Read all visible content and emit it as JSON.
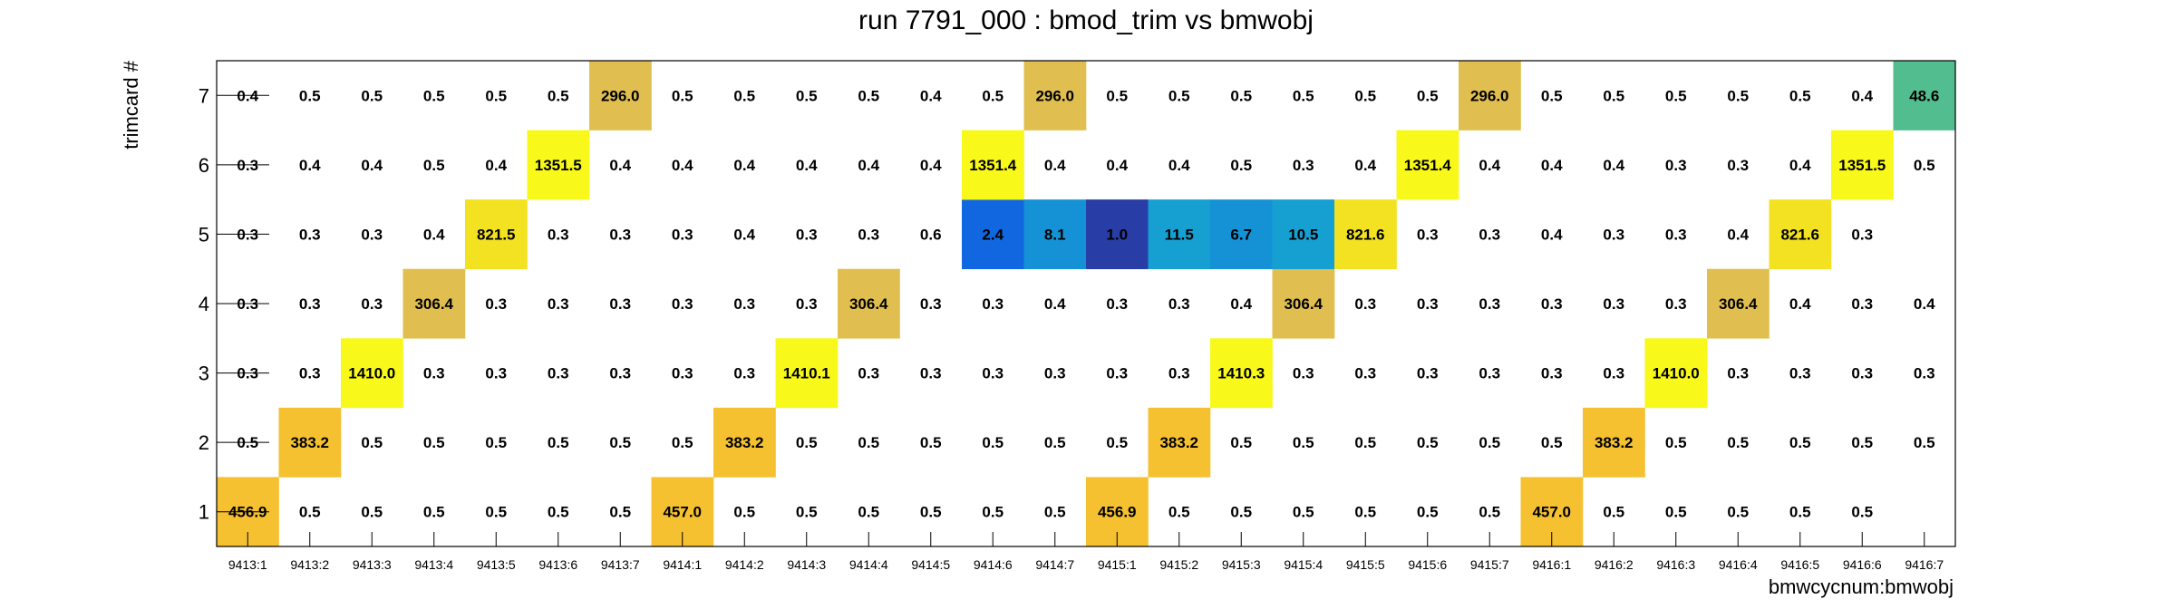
{
  "chart_data": {
    "type": "heatmap",
    "title": "run 7791_000 : bmod_trim vs bmwobj",
    "xlabel": "bmwcycnum:bmwobj",
    "ylabel": "trimcard #",
    "x_categories": [
      "9413:1",
      "9413:2",
      "9413:3",
      "9413:4",
      "9413:5",
      "9413:6",
      "9413:7",
      "9414:1",
      "9414:2",
      "9414:3",
      "9414:4",
      "9414:5",
      "9414:6",
      "9414:7",
      "9415:1",
      "9415:2",
      "9415:3",
      "9415:4",
      "9415:5",
      "9415:6",
      "9415:7",
      "9416:1",
      "9416:2",
      "9416:3",
      "9416:4",
      "9416:5",
      "9416:6",
      "9416:7"
    ],
    "y_categories": [
      "1",
      "2",
      "3",
      "4",
      "5",
      "6",
      "7"
    ],
    "z_label_format": "0.1f",
    "values": [
      [
        "456.9",
        "0.5",
        "0.5",
        "0.5",
        "0.5",
        "0.5",
        "0.5",
        "457.0",
        "0.5",
        "0.5",
        "0.5",
        "0.5",
        "0.5",
        "0.5",
        "456.9",
        "0.5",
        "0.5",
        "0.5",
        "0.5",
        "0.5",
        "0.5",
        "457.0",
        "0.5",
        "0.5",
        "0.5",
        "0.5",
        "0.5",
        null
      ],
      [
        "0.5",
        "383.2",
        "0.5",
        "0.5",
        "0.5",
        "0.5",
        "0.5",
        "0.5",
        "383.2",
        "0.5",
        "0.5",
        "0.5",
        "0.5",
        "0.5",
        "0.5",
        "383.2",
        "0.5",
        "0.5",
        "0.5",
        "0.5",
        "0.5",
        "0.5",
        "383.2",
        "0.5",
        "0.5",
        "0.5",
        "0.5",
        "0.5"
      ],
      [
        "0.3",
        "0.3",
        "1410.0",
        "0.3",
        "0.3",
        "0.3",
        "0.3",
        "0.3",
        "0.3",
        "1410.1",
        "0.3",
        "0.3",
        "0.3",
        "0.3",
        "0.3",
        "0.3",
        "1410.3",
        "0.3",
        "0.3",
        "0.3",
        "0.3",
        "0.3",
        "0.3",
        "1410.0",
        "0.3",
        "0.3",
        "0.3",
        "0.3"
      ],
      [
        "0.3",
        "0.3",
        "0.3",
        "306.4",
        "0.3",
        "0.3",
        "0.3",
        "0.3",
        "0.3",
        "0.3",
        "306.4",
        "0.3",
        "0.3",
        "0.4",
        "0.3",
        "0.3",
        "0.4",
        "306.4",
        "0.3",
        "0.3",
        "0.3",
        "0.3",
        "0.3",
        "0.3",
        "306.4",
        "0.4",
        "0.3",
        "0.4"
      ],
      [
        "0.3",
        "0.3",
        "0.3",
        "0.4",
        "821.5",
        "0.3",
        "0.3",
        "0.3",
        "0.4",
        "0.3",
        "0.3",
        "0.6",
        "2.4",
        "8.1",
        "1.0",
        "11.5",
        "6.7",
        "10.5",
        "821.6",
        "0.3",
        "0.3",
        "0.4",
        "0.3",
        "0.3",
        "0.4",
        "821.6",
        "0.3",
        null
      ],
      [
        "0.3",
        "0.4",
        "0.4",
        "0.5",
        "0.4",
        "1351.5",
        "0.4",
        "0.4",
        "0.4",
        "0.4",
        "0.4",
        "0.4",
        "1351.4",
        "0.4",
        "0.4",
        "0.4",
        "0.5",
        "0.3",
        "0.4",
        "1351.4",
        "0.4",
        "0.4",
        "0.4",
        "0.3",
        "0.3",
        "0.4",
        "1351.5",
        "0.5"
      ],
      [
        "0.4",
        "0.5",
        "0.5",
        "0.5",
        "0.5",
        "0.5",
        "296.0",
        "0.5",
        "0.5",
        "0.5",
        "0.5",
        "0.4",
        "0.5",
        "296.0",
        "0.5",
        "0.5",
        "0.5",
        "0.5",
        "0.5",
        "0.5",
        "296.0",
        "0.5",
        "0.5",
        "0.5",
        "0.5",
        "0.5",
        "0.4",
        "48.6"
      ]
    ],
    "cell_colors": {
      "1351.5": "#f8f81a",
      "1351.4": "#f8f81a",
      "1410.0": "#f8f81a",
      "1410.1": "#f8f81a",
      "1410.3": "#f8f81a",
      "821.5": "#f2e221",
      "821.6": "#f2e221",
      "456.9": "#f5c131",
      "457.0": "#f5c131",
      "383.2": "#f5c131",
      "306.4": "#e0bf50",
      "296.0": "#e0bf50",
      "48.6": "#52bd8f",
      "11.5": "#16a0d2",
      "10.5": "#16a0d2",
      "8.1": "#1592d6",
      "6.7": "#1592d6",
      "2.4": "#1167df",
      "1.0": "#283da5"
    },
    "grid": false,
    "legend": "none"
  }
}
